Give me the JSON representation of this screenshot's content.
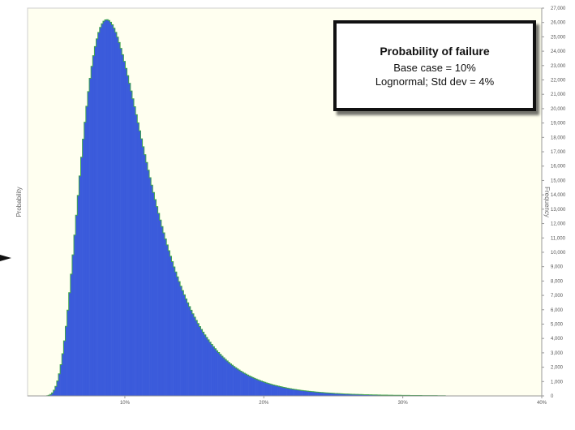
{
  "chart_data": {
    "type": "bar",
    "distribution": "lognormal",
    "mode": 0.087,
    "peak": 26200,
    "min": 0.035,
    "series": [
      {
        "name": "",
        "color": "#3b5bdb",
        "edge_color": "#3fa34d"
      }
    ],
    "annotation": {
      "title": "Probability of failure",
      "line1": "Base case = 10%",
      "line2": "Lognormal; Std dev = 4%"
    },
    "ylabel_left": "Probability",
    "ylabel_right": "Frequency",
    "right_ylim": [
      0,
      27000
    ],
    "right_ticks": [
      "0",
      "1,000",
      "2,000",
      "3,000",
      "4,000",
      "5,000",
      "6,000",
      "7,000",
      "8,000",
      "9,000",
      "10,000",
      "11,000",
      "12,000",
      "13,000",
      "14,000",
      "15,000",
      "16,000",
      "17,000",
      "18,000",
      "19,000",
      "20,000",
      "21,000",
      "22,000",
      "23,000",
      "24,000",
      "25,000",
      "26,000",
      "27,000"
    ],
    "xlim": [
      0.03,
      0.4
    ],
    "x_ticks": [
      {
        "value": 0.1,
        "label": "10%"
      },
      {
        "value": 0.2,
        "label": "20%"
      },
      {
        "value": 0.3,
        "label": "30%"
      },
      {
        "value": 0.4,
        "label": "40%"
      }
    ],
    "plot_background": "#fffff0"
  }
}
